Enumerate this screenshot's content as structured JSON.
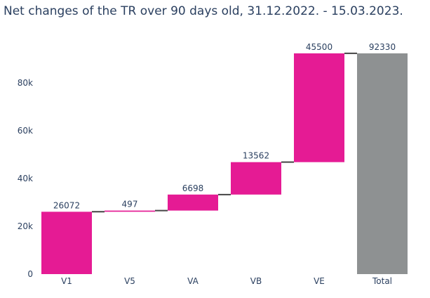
{
  "chart_data": {
    "type": "waterfall",
    "title": "Net changes of the TR over 90 days old, 31.12.2022. - 15.03.2023.",
    "categories": [
      "V1",
      "V5",
      "VA",
      "VB",
      "VE",
      "Total"
    ],
    "values": [
      26072,
      497,
      6698,
      13562,
      45500,
      92330
    ],
    "measures": [
      "relative",
      "relative",
      "relative",
      "relative",
      "relative",
      "total"
    ],
    "labels": [
      "26072",
      "497",
      "6698",
      "13562",
      "45500",
      "92330"
    ],
    "y_ticks": [
      0,
      20000,
      40000,
      60000,
      80000
    ],
    "y_tick_labels": [
      "0",
      "20k",
      "40k",
      "60k",
      "80k"
    ],
    "ylim": [
      0,
      97000
    ],
    "grid": false,
    "legend": false,
    "colors": {
      "increase": "#e51b94",
      "total": "#8e9192",
      "connector": "#444444",
      "text": "#2a3f5f"
    }
  }
}
